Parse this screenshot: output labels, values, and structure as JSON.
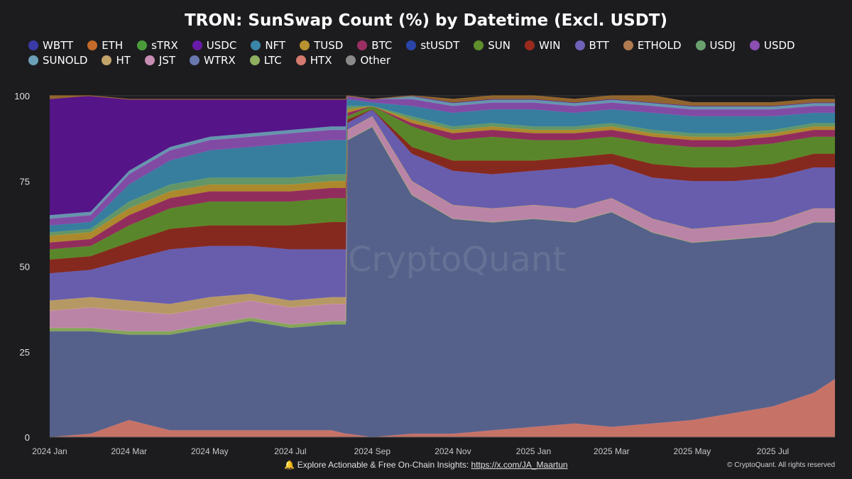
{
  "footer": {
    "bell_icon": "bell-icon",
    "text": "Explore Actionable & Free On-Chain Insights:",
    "link": "https://x.com/JA_Maartun",
    "copyright": "© CryptoQuant. All rights reserved"
  },
  "watermark": "CryptoQuant",
  "chart_data": {
    "type": "area",
    "stacked": true,
    "normalized": true,
    "title": "TRON: SunSwap Count (%) by Datetime (Excl. USDT)",
    "xlabel": "",
    "ylabel": "",
    "ylim": [
      0,
      100
    ],
    "yticks": [
      "0",
      "25",
      "50",
      "75",
      "100"
    ],
    "xticks": [
      "2024 Jan",
      "2024 Mar",
      "2024 May",
      "2024 Jul",
      "2024 Sep",
      "2024 Nov",
      "2025 Jan",
      "2025 Mar",
      "2025 May",
      "2025 Jul"
    ],
    "x_range": [
      "2024-01-01",
      "2025-08-17"
    ],
    "grid": true,
    "legend_position": "top",
    "x": [
      "2024-01-01",
      "2024-02-01",
      "2024-03-01",
      "2024-04-01",
      "2024-05-01",
      "2024-06-01",
      "2024-07-01",
      "2024-08-01",
      "2024-08-12",
      "2024-08-13",
      "2024-09-01",
      "2024-10-01",
      "2024-11-01",
      "2024-12-01",
      "2025-01-01",
      "2025-02-01",
      "2025-03-01",
      "2025-04-01",
      "2025-05-01",
      "2025-06-01",
      "2025-07-01",
      "2025-08-01",
      "2025-08-17"
    ],
    "series": [
      {
        "name": "HTX",
        "color": "#d57a6e",
        "values": [
          0,
          1,
          5,
          2,
          2,
          2,
          2,
          2,
          1,
          1,
          0,
          1,
          1,
          2,
          3,
          4,
          3,
          4,
          5,
          7,
          9,
          13,
          17
        ]
      },
      {
        "name": "WTRX",
        "color": "#5a6794",
        "values": [
          31,
          30,
          25,
          28,
          30,
          32,
          30,
          31,
          32,
          86,
          91,
          70,
          63,
          61,
          61,
          59,
          63,
          56,
          52,
          51,
          50,
          50,
          46
        ]
      },
      {
        "name": "LTC",
        "color": "#8fb060",
        "values": [
          1,
          1,
          1,
          1,
          1,
          1,
          1,
          1,
          1,
          0,
          0,
          0,
          0,
          0,
          0,
          0,
          0,
          0,
          0,
          0,
          0,
          0,
          0
        ]
      },
      {
        "name": "JST",
        "color": "#c88db3",
        "values": [
          5,
          6,
          6,
          5,
          5,
          5,
          5,
          5,
          5,
          3,
          3,
          4,
          4,
          4,
          4,
          4,
          4,
          4,
          4,
          4,
          4,
          4,
          4
        ]
      },
      {
        "name": "HT",
        "color": "#c2a36a",
        "values": [
          3,
          3,
          3,
          3,
          3,
          2,
          2,
          2,
          2,
          0,
          0,
          0,
          0,
          0,
          0,
          0,
          0,
          0,
          0,
          0,
          0,
          0,
          0
        ]
      },
      {
        "name": "BTT",
        "color": "#6e63b8",
        "values": [
          8,
          8,
          12,
          16,
          15,
          14,
          15,
          14,
          14,
          2,
          2,
          8,
          10,
          10,
          10,
          12,
          10,
          12,
          14,
          13,
          13,
          12,
          12
        ]
      },
      {
        "name": "WIN",
        "color": "#8e2a1e",
        "values": [
          4,
          4,
          5,
          6,
          6,
          6,
          7,
          8,
          8,
          1,
          0,
          2,
          3,
          4,
          3,
          3,
          3,
          4,
          4,
          4,
          4,
          4,
          4
        ]
      },
      {
        "name": "SUN",
        "color": "#5f8f2c",
        "values": [
          3,
          3,
          5,
          6,
          7,
          7,
          7,
          7,
          7,
          1,
          1,
          6,
          6,
          7,
          6,
          5,
          5,
          6,
          6,
          6,
          6,
          5,
          5
        ]
      },
      {
        "name": "BTC",
        "color": "#9b2f63",
        "values": [
          2,
          2,
          3,
          3,
          3,
          3,
          3,
          3,
          3,
          1,
          0,
          1,
          2,
          2,
          2,
          2,
          2,
          2,
          2,
          2,
          2,
          2,
          2
        ]
      },
      {
        "name": "TUSD",
        "color": "#b8922f",
        "values": [
          2,
          2,
          2,
          2,
          2,
          2,
          2,
          2,
          2,
          1,
          0,
          1,
          1,
          1,
          1,
          1,
          1,
          1,
          1,
          1,
          1,
          1,
          1
        ]
      },
      {
        "name": "USDJ",
        "color": "#6aa06e",
        "values": [
          1,
          1,
          2,
          2,
          2,
          2,
          2,
          2,
          2,
          1,
          0,
          1,
          1,
          1,
          1,
          1,
          1,
          1,
          1,
          1,
          1,
          1,
          1
        ]
      },
      {
        "name": "NFT",
        "color": "#3a86a8",
        "values": [
          2,
          2,
          5,
          7,
          8,
          9,
          10,
          10,
          10,
          2,
          1,
          3,
          4,
          4,
          5,
          4,
          4,
          5,
          5,
          5,
          4,
          3,
          3
        ]
      },
      {
        "name": "USDD",
        "color": "#8a4fb0",
        "values": [
          2,
          2,
          3,
          3,
          3,
          3,
          3,
          3,
          3,
          1,
          1,
          2,
          2,
          2,
          2,
          2,
          2,
          2,
          2,
          2,
          2,
          2,
          2
        ]
      },
      {
        "name": "SUNOLD",
        "color": "#6c9fb8",
        "values": [
          1,
          1,
          1,
          1,
          1,
          1,
          1,
          1,
          1,
          0,
          0,
          1,
          1,
          1,
          1,
          1,
          1,
          1,
          1,
          1,
          1,
          1,
          1
        ]
      },
      {
        "name": "USDC",
        "color": "#5a1490",
        "values": [
          34,
          34,
          21,
          14,
          11,
          10,
          9,
          8,
          8,
          0,
          0,
          0,
          0,
          0,
          0,
          0,
          0,
          0,
          0,
          0,
          0,
          0,
          0
        ]
      },
      {
        "name": "ETHOLD",
        "color": "#9a6a30",
        "values": [
          1,
          0,
          0,
          0,
          0,
          0,
          0,
          0,
          0,
          0,
          0,
          0,
          1,
          1,
          2,
          1,
          4,
          2,
          1,
          1,
          1,
          1,
          1
        ]
      },
      {
        "name": "WBTT",
        "color": "#3a3aa8",
        "values": [
          0,
          0,
          0,
          0,
          0,
          0,
          0,
          0,
          0,
          0,
          0,
          0,
          0,
          0,
          0,
          0,
          0,
          0,
          0,
          0,
          0,
          0,
          0
        ]
      },
      {
        "name": "ETH",
        "color": "#c26b2a",
        "values": [
          0,
          0,
          0,
          0,
          0,
          0,
          0,
          0,
          0,
          0,
          0,
          0,
          0,
          0,
          0,
          0,
          0,
          0,
          0,
          0,
          0,
          0,
          0
        ]
      },
      {
        "name": "sTRX",
        "color": "#4a9a3a",
        "values": [
          0,
          0,
          0,
          0,
          0,
          0,
          0,
          0,
          0,
          0,
          0,
          0,
          0,
          0,
          0,
          0,
          0,
          0,
          0,
          0,
          0,
          0,
          0
        ]
      },
      {
        "name": "stUSDT",
        "color": "#2a44a8",
        "values": [
          0,
          0,
          0,
          0,
          0,
          0,
          0,
          0,
          0,
          0,
          0,
          0,
          0,
          0,
          0,
          0,
          0,
          0,
          0,
          0,
          0,
          0,
          0
        ]
      },
      {
        "name": "Other",
        "color": "#8a8a8a",
        "values": [
          0,
          0,
          0,
          0,
          0,
          0,
          0,
          0,
          0,
          0,
          0,
          0,
          0,
          0,
          0,
          0,
          0,
          0,
          0,
          0,
          0,
          0,
          0
        ]
      }
    ],
    "legend": [
      {
        "name": "WBTT",
        "color": "#3a3aa8"
      },
      {
        "name": "ETH",
        "color": "#c26b2a"
      },
      {
        "name": "sTRX",
        "color": "#4a9a3a"
      },
      {
        "name": "USDC",
        "color": "#6a1aa8"
      },
      {
        "name": "NFT",
        "color": "#3a86a8"
      },
      {
        "name": "TUSD",
        "color": "#b8922f"
      },
      {
        "name": "BTC",
        "color": "#9b2f63"
      },
      {
        "name": "stUSDT",
        "color": "#2a44a8"
      },
      {
        "name": "SUN",
        "color": "#5f8f2c"
      },
      {
        "name": "WIN",
        "color": "#9b2a1e"
      },
      {
        "name": "BTT",
        "color": "#6e63b8"
      },
      {
        "name": "ETHOLD",
        "color": "#b07a50"
      },
      {
        "name": "USDJ",
        "color": "#6aa06e"
      },
      {
        "name": "USDD",
        "color": "#8a4fb0"
      },
      {
        "name": "SUNOLD",
        "color": "#6c9fb8"
      },
      {
        "name": "HT",
        "color": "#c2a36a"
      },
      {
        "name": "JST",
        "color": "#c88db3"
      },
      {
        "name": "WTRX",
        "color": "#6a78b0"
      },
      {
        "name": "LTC",
        "color": "#8fb060"
      },
      {
        "name": "HTX",
        "color": "#d57a6e"
      },
      {
        "name": "Other",
        "color": "#8a8a8a"
      }
    ]
  }
}
